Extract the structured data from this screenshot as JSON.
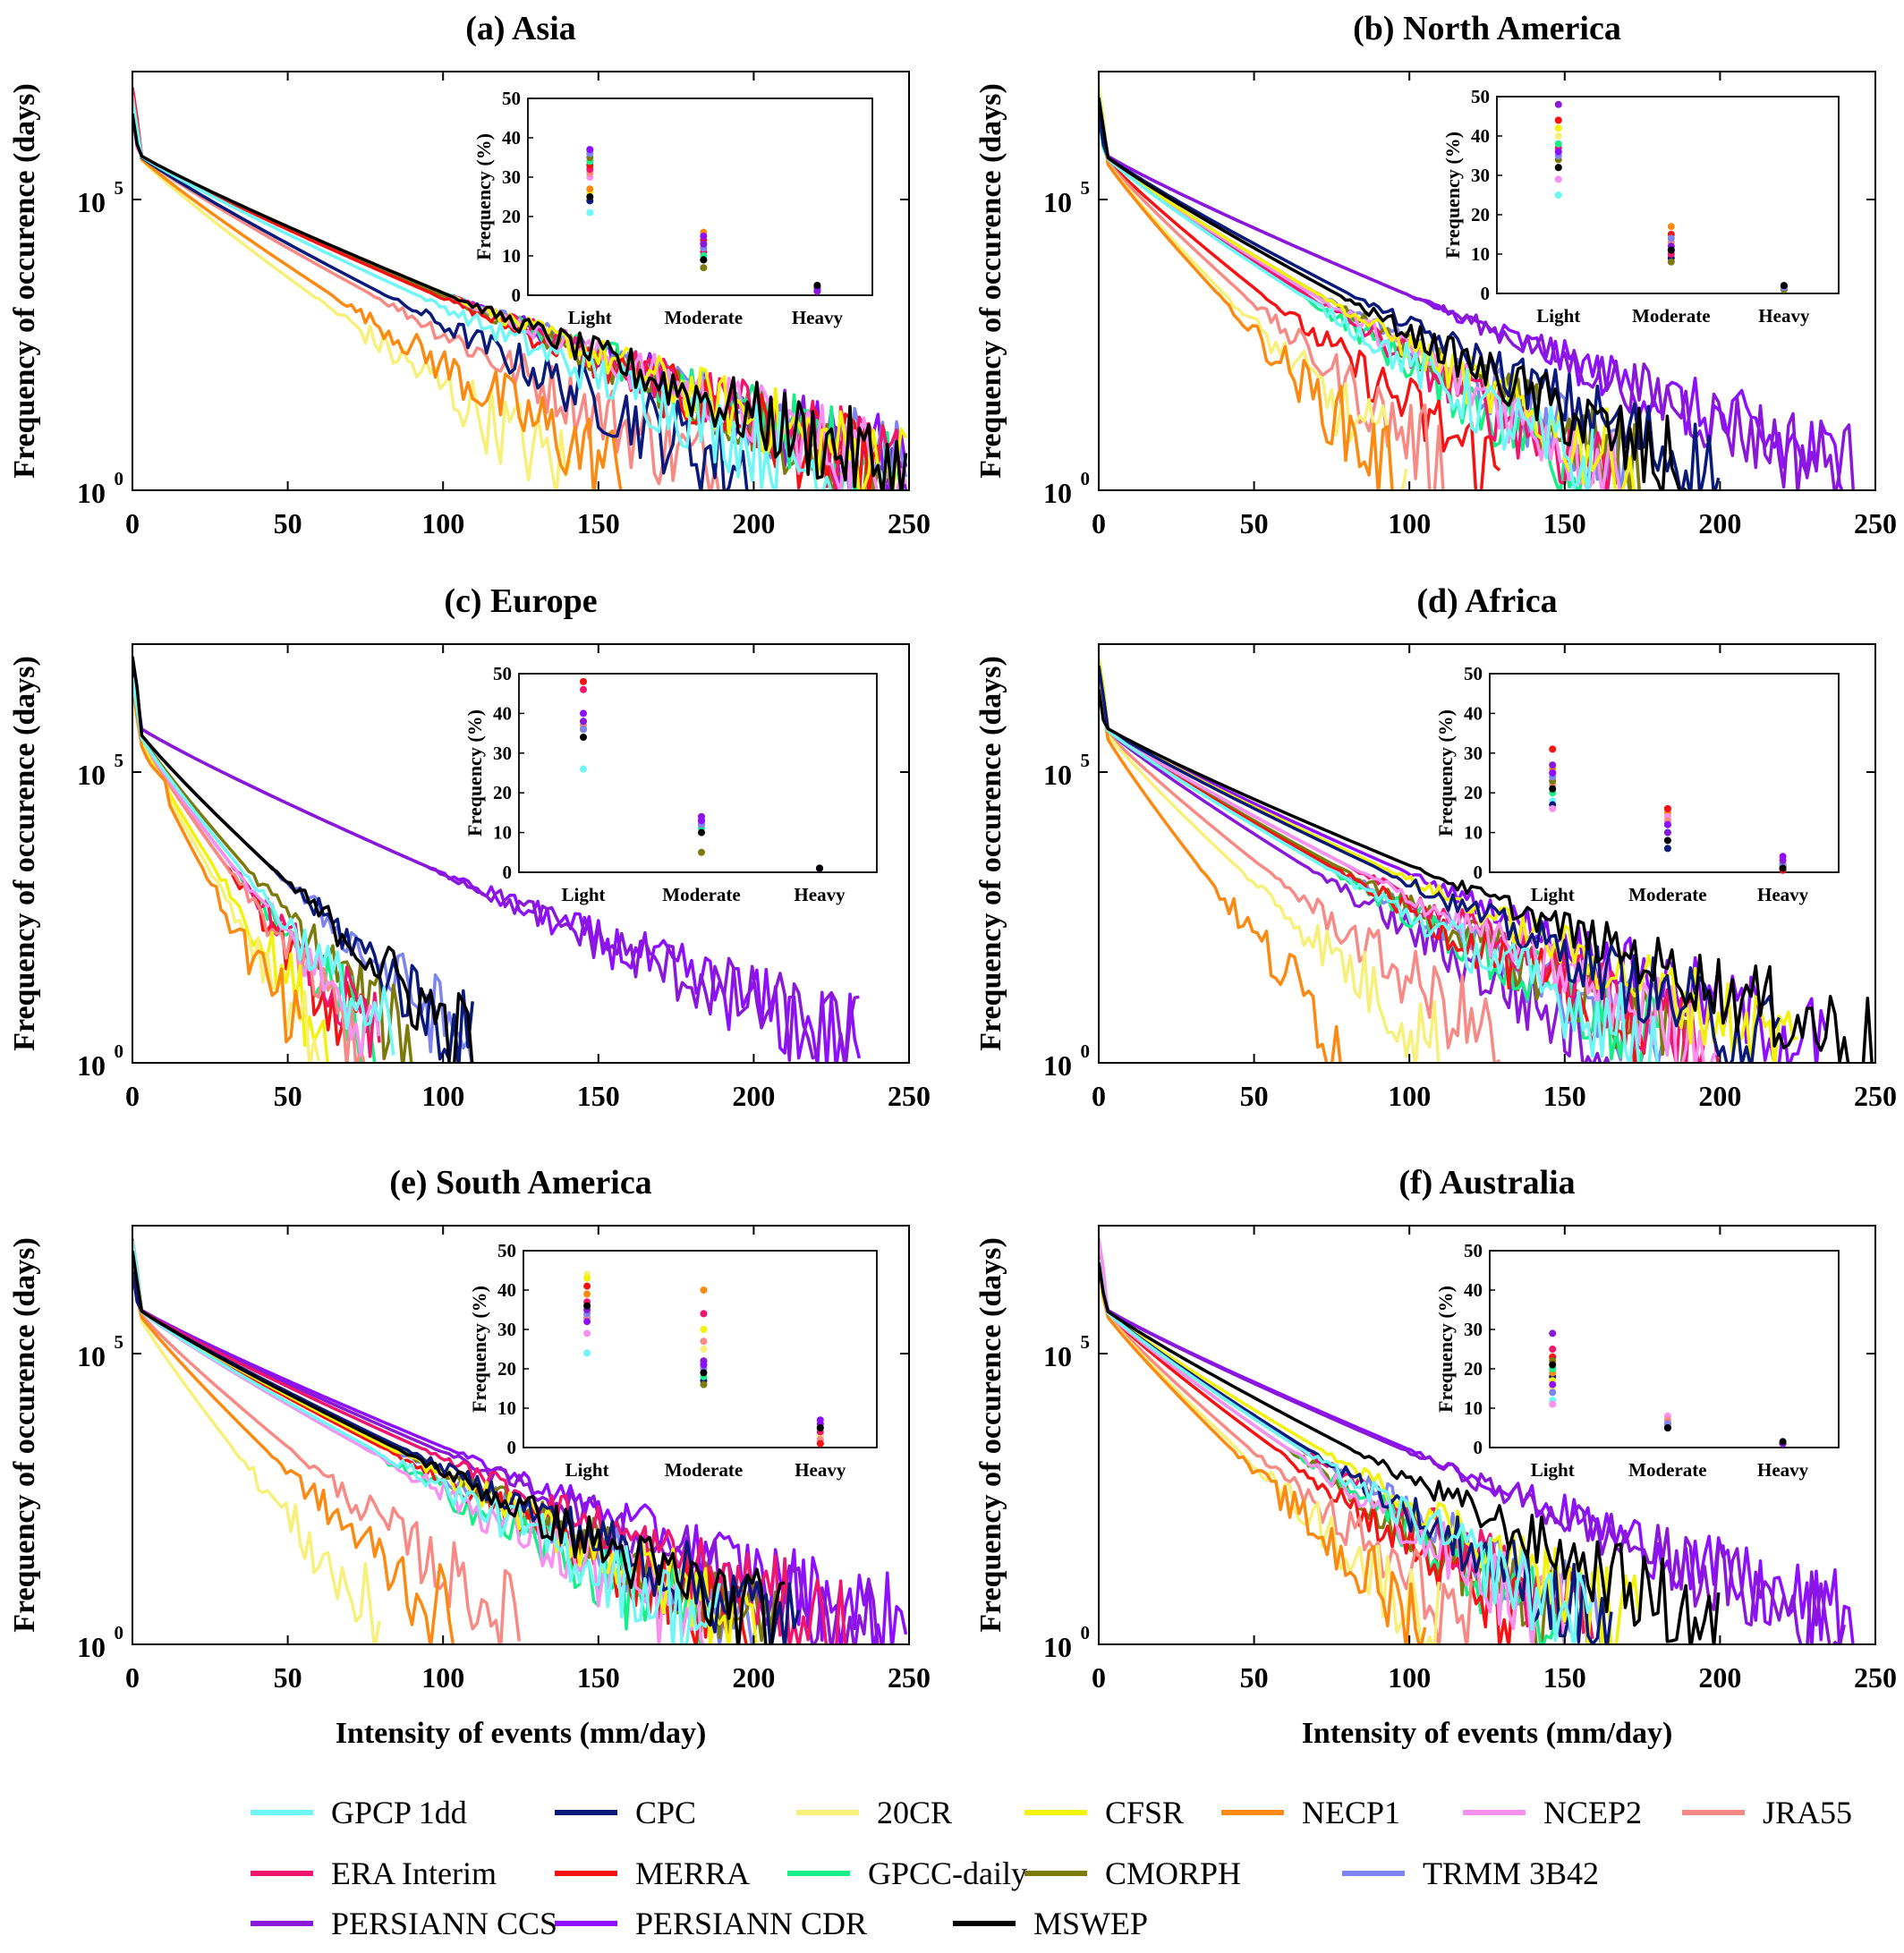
{
  "figure": {
    "y_axis_label": "Frequency of occurence (days)",
    "x_axis_label": "Intensity of events (mm/day)"
  },
  "legend": [
    {
      "name": "GPCP 1dd",
      "color": "#6ff7f7"
    },
    {
      "name": "CPC",
      "color": "#0a1a7a"
    },
    {
      "name": "20CR",
      "color": "#f7f07a"
    },
    {
      "name": "CFSR",
      "color": "#f2f20a"
    },
    {
      "name": "NECP1",
      "color": "#fb8a12"
    },
    {
      "name": "NCEP2",
      "color": "#f890ef"
    },
    {
      "name": "JRA55",
      "color": "#f78a85"
    },
    {
      "name": "ERA Interim",
      "color": "#f0166e"
    },
    {
      "name": "MERRA",
      "color": "#f41212"
    },
    {
      "name": "GPCC-daily",
      "color": "#16ef88"
    },
    {
      "name": "CMORPH",
      "color": "#7d7a0c"
    },
    {
      "name": "TRMM 3B42",
      "color": "#7e85ee"
    },
    {
      "name": "PERSIANN CCS",
      "color": "#8a18d8"
    },
    {
      "name": "PERSIANN CDR",
      "color": "#8e0fff"
    },
    {
      "name": "MSWEP",
      "color": "#000000"
    }
  ],
  "chart_data": [
    {
      "type": "line",
      "title": "(a) Asia",
      "xlabel": "",
      "ylabel": "Frequency of occurence (days)",
      "xlim": [
        0,
        250
      ],
      "xticks": [
        "0",
        "50",
        "100",
        "150",
        "200",
        "250"
      ],
      "yscale": "log",
      "ytick_labels": [
        "10",
        "10"
      ],
      "ytick_exponents": [
        "0",
        "5"
      ],
      "series_end_x": [
        225,
        200,
        142,
        250,
        158,
        250,
        190,
        250,
        240,
        250,
        245,
        250,
        250,
        250,
        250
      ],
      "inset": {
        "type": "scatter",
        "ylabel": "Frequency (%)",
        "ylim": [
          0,
          50
        ],
        "yticks": [
          "0",
          "10",
          "20",
          "30",
          "40",
          "50"
        ],
        "categories": [
          "Light",
          "Moderate",
          "Heavy"
        ],
        "values": [
          [
            21,
            7,
            1
          ],
          [
            24,
            9,
            1.5
          ],
          [
            25,
            10,
            1
          ],
          [
            26,
            11,
            1.5
          ],
          [
            27,
            16,
            1
          ],
          [
            30,
            12,
            2
          ],
          [
            31,
            13,
            1
          ],
          [
            32,
            11,
            1.5
          ],
          [
            33,
            14,
            2
          ],
          [
            34,
            10,
            1
          ],
          [
            35,
            7,
            1
          ],
          [
            36,
            12,
            1.5
          ],
          [
            37,
            13,
            1
          ],
          [
            37,
            15,
            2
          ],
          [
            25,
            9,
            2.5
          ]
        ]
      }
    },
    {
      "type": "line",
      "title": "(b) North America",
      "xlabel": "",
      "ylabel": "Frequency of occurence (days)",
      "xlim": [
        0,
        250
      ],
      "xticks": [
        "0",
        "50",
        "100",
        "150",
        "200",
        "250"
      ],
      "yscale": "log",
      "ytick_labels": [
        "10",
        "10"
      ],
      "ytick_exponents": [
        "0",
        "5"
      ],
      "series_end_x": [
        160,
        200,
        100,
        175,
        95,
        170,
        115,
        165,
        130,
        160,
        175,
        175,
        245,
        245,
        190
      ],
      "inset": {
        "type": "scatter",
        "ylabel": "Frequency (%)",
        "ylim": [
          0,
          50
        ],
        "yticks": [
          "0",
          "10",
          "20",
          "30",
          "40",
          "50"
        ],
        "categories": [
          "Light",
          "Moderate",
          "Heavy"
        ],
        "values": [
          [
            25,
            10,
            1.5
          ],
          [
            32,
            9,
            1.5
          ],
          [
            40,
            12,
            1
          ],
          [
            42,
            14,
            1
          ],
          [
            44,
            17,
            1
          ],
          [
            29,
            12,
            1.5
          ],
          [
            36,
            13,
            1
          ],
          [
            37,
            10,
            2
          ],
          [
            44,
            15,
            1.5
          ],
          [
            38,
            11,
            1
          ],
          [
            34,
            8,
            1
          ],
          [
            35,
            14,
            1.5
          ],
          [
            48,
            12,
            2
          ],
          [
            36,
            11,
            2
          ],
          [
            32,
            11,
            2
          ]
        ]
      }
    },
    {
      "type": "line",
      "title": "(c) Europe",
      "xlabel": "",
      "ylabel": "Frequency of occurence (days)",
      "xlim": [
        0,
        250
      ],
      "xticks": [
        "0",
        "50",
        "100",
        "150",
        "200",
        "250"
      ],
      "yscale": "log",
      "ytick_labels": [
        "10",
        "10"
      ],
      "ytick_exponents": [
        "0",
        "5"
      ],
      "series_end_x": [
        85,
        110,
        60,
        65,
        55,
        80,
        75,
        80,
        75,
        80,
        90,
        110,
        235,
        235,
        110
      ],
      "inset": {
        "type": "scatter",
        "ylabel": "Frequency (%)",
        "ylim": [
          0,
          50
        ],
        "yticks": [
          "0",
          "10",
          "20",
          "30",
          "40",
          "50"
        ],
        "categories": [
          "Light",
          "Moderate",
          "Heavy"
        ],
        "values": [
          [
            26,
            12,
            1
          ],
          [
            36,
            13,
            1
          ],
          [
            37,
            11,
            1
          ],
          [
            37,
            12,
            1
          ],
          [
            38,
            13,
            1
          ],
          [
            36,
            12,
            1
          ],
          [
            37,
            12,
            1
          ],
          [
            46,
            13,
            1
          ],
          [
            48,
            14,
            1
          ],
          [
            36,
            11,
            1
          ],
          [
            36,
            5,
            1
          ],
          [
            36,
            12,
            1
          ],
          [
            38,
            14,
            1
          ],
          [
            40,
            13,
            1
          ],
          [
            34,
            10,
            1
          ]
        ]
      }
    },
    {
      "type": "line",
      "title": "(d) Africa",
      "xlabel": "",
      "ylabel": "Frequency of occurence (days)",
      "xlim": [
        0,
        250
      ],
      "xticks": [
        "0",
        "50",
        "100",
        "150",
        "200",
        "250"
      ],
      "yscale": "log",
      "ytick_labels": [
        "10",
        "10"
      ],
      "ytick_exponents": [
        "0",
        "5"
      ],
      "series_end_x": [
        180,
        220,
        110,
        225,
        80,
        200,
        130,
        200,
        185,
        180,
        190,
        185,
        165,
        235,
        250
      ],
      "inset": {
        "type": "scatter",
        "ylabel": "Frequency (%)",
        "ylim": [
          0,
          50
        ],
        "yticks": [
          "0",
          "10",
          "20",
          "30",
          "40",
          "50"
        ],
        "categories": [
          "Light",
          "Moderate",
          "Heavy"
        ],
        "values": [
          [
            18,
            8,
            1
          ],
          [
            17,
            6,
            2
          ],
          [
            23,
            10,
            3
          ],
          [
            24,
            12,
            1
          ],
          [
            26,
            15,
            1
          ],
          [
            16,
            14,
            1.5
          ],
          [
            22,
            13,
            1
          ],
          [
            25,
            16,
            1
          ],
          [
            31,
            16,
            0.5
          ],
          [
            20,
            10,
            2
          ],
          [
            23,
            12,
            1.5
          ],
          [
            24,
            12,
            2
          ],
          [
            27,
            10,
            3
          ],
          [
            25,
            12,
            4
          ],
          [
            21,
            8,
            1
          ]
        ]
      }
    },
    {
      "type": "line",
      "title": "(e) South America",
      "xlabel": "Intensity of events (mm/day)",
      "ylabel": "Frequency of occurence (days)",
      "xlim": [
        0,
        250
      ],
      "xticks": [
        "0",
        "50",
        "100",
        "150",
        "200",
        "250"
      ],
      "yscale": "log",
      "ytick_labels": [
        "10",
        "10"
      ],
      "ytick_exponents": [
        "0",
        "5"
      ],
      "series_end_x": [
        190,
        215,
        80,
        205,
        105,
        185,
        125,
        230,
        200,
        185,
        210,
        205,
        240,
        250,
        210
      ],
      "inset": {
        "type": "scatter",
        "ylabel": "Frequency (%)",
        "ylim": [
          0,
          50
        ],
        "yticks": [
          "0",
          "10",
          "20",
          "30",
          "40",
          "50"
        ],
        "categories": [
          "Light",
          "Moderate",
          "Heavy"
        ],
        "values": [
          [
            24,
            16,
            2
          ],
          [
            33,
            17,
            3
          ],
          [
            44,
            25,
            3
          ],
          [
            43,
            30,
            2
          ],
          [
            39,
            40,
            1
          ],
          [
            29,
            34,
            2
          ],
          [
            33,
            27,
            2
          ],
          [
            37,
            34,
            4
          ],
          [
            41,
            22,
            1
          ],
          [
            35,
            18,
            5
          ],
          [
            36,
            16,
            5
          ],
          [
            34,
            20,
            6
          ],
          [
            35,
            22,
            6
          ],
          [
            32,
            21,
            7
          ],
          [
            36,
            19,
            5
          ]
        ]
      }
    },
    {
      "type": "line",
      "title": "(f) Australia",
      "xlabel": "Intensity of events (mm/day)",
      "ylabel": "Frequency of occurence (days)",
      "xlim": [
        0,
        250
      ],
      "xticks": [
        "0",
        "50",
        "100",
        "150",
        "200",
        "250"
      ],
      "yscale": "log",
      "ytick_labels": [
        "10",
        "10"
      ],
      "ytick_exponents": [
        "0",
        "5"
      ],
      "series_end_x": [
        160,
        165,
        110,
        175,
        105,
        150,
        120,
        160,
        140,
        150,
        150,
        165,
        240,
        245,
        200
      ],
      "inset": {
        "type": "scatter",
        "ylabel": "Frequency (%)",
        "ylim": [
          0,
          50
        ],
        "yticks": [
          "0",
          "10",
          "20",
          "30",
          "40",
          "50"
        ],
        "categories": [
          "Light",
          "Moderate",
          "Heavy"
        ],
        "values": [
          [
            12,
            6,
            1
          ],
          [
            18,
            5,
            1
          ],
          [
            15,
            6,
            1
          ],
          [
            17,
            6,
            1
          ],
          [
            19,
            5,
            1
          ],
          [
            11,
            8,
            1
          ],
          [
            23,
            7,
            1
          ],
          [
            25,
            6,
            1
          ],
          [
            23,
            5,
            1
          ],
          [
            20,
            6,
            1
          ],
          [
            22,
            5,
            1
          ],
          [
            14,
            6,
            1
          ],
          [
            29,
            5,
            1
          ],
          [
            16,
            5,
            1
          ],
          [
            21,
            5,
            1.5
          ]
        ]
      }
    }
  ]
}
